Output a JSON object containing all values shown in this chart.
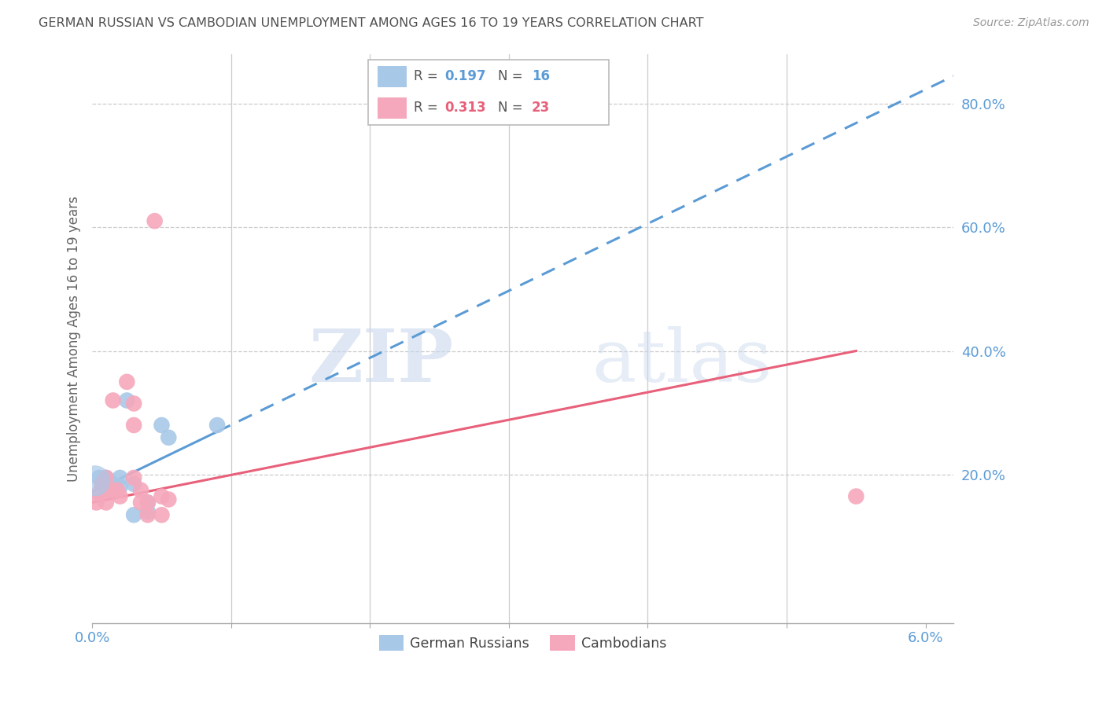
{
  "title": "GERMAN RUSSIAN VS CAMBODIAN UNEMPLOYMENT AMONG AGES 16 TO 19 YEARS CORRELATION CHART",
  "source": "Source: ZipAtlas.com",
  "ylabel": "Unemployment Among Ages 16 to 19 years",
  "xlim": [
    0.0,
    0.062
  ],
  "ylim": [
    -0.04,
    0.88
  ],
  "ytick_vals": [
    0.2,
    0.4,
    0.6,
    0.8
  ],
  "ytick_labels": [
    "20.0%",
    "40.0%",
    "60.0%",
    "80.0%"
  ],
  "xtick_vals": [
    0.0,
    0.01,
    0.02,
    0.03,
    0.04,
    0.05,
    0.06
  ],
  "xtick_labels": [
    "0.0%",
    "",
    "",
    "",
    "",
    "",
    "6.0%"
  ],
  "german_russian_x": [
    0.0005,
    0.0008,
    0.001,
    0.001,
    0.0012,
    0.0015,
    0.002,
    0.002,
    0.0025,
    0.003,
    0.003,
    0.004,
    0.004,
    0.005,
    0.0055,
    0.009
  ],
  "german_russian_y": [
    0.195,
    0.185,
    0.175,
    0.195,
    0.185,
    0.185,
    0.18,
    0.195,
    0.32,
    0.185,
    0.135,
    0.155,
    0.14,
    0.28,
    0.26,
    0.28
  ],
  "cambodian_x": [
    0.0003,
    0.0005,
    0.0007,
    0.001,
    0.001,
    0.001,
    0.0013,
    0.0015,
    0.0018,
    0.002,
    0.0025,
    0.003,
    0.003,
    0.003,
    0.0035,
    0.0035,
    0.004,
    0.004,
    0.0045,
    0.005,
    0.005,
    0.0055,
    0.055
  ],
  "cambodian_y": [
    0.155,
    0.17,
    0.185,
    0.195,
    0.175,
    0.155,
    0.175,
    0.32,
    0.175,
    0.165,
    0.35,
    0.315,
    0.195,
    0.28,
    0.175,
    0.155,
    0.155,
    0.135,
    0.61,
    0.135,
    0.165,
    0.16,
    0.165
  ],
  "gr_color": "#a8c8e8",
  "cam_color": "#f5a8bc",
  "gr_line_color": "#5b9bd5",
  "cam_line_color": "#e8607a",
  "gr_R": 0.197,
  "gr_N": 16,
  "cam_R": 0.313,
  "cam_N": 23,
  "watermark_zip": "ZIP",
  "watermark_atlas": "atlas",
  "background_color": "#ffffff",
  "grid_color": "#cccccc",
  "axis_label_color": "#5b9bd5",
  "title_color": "#505050"
}
